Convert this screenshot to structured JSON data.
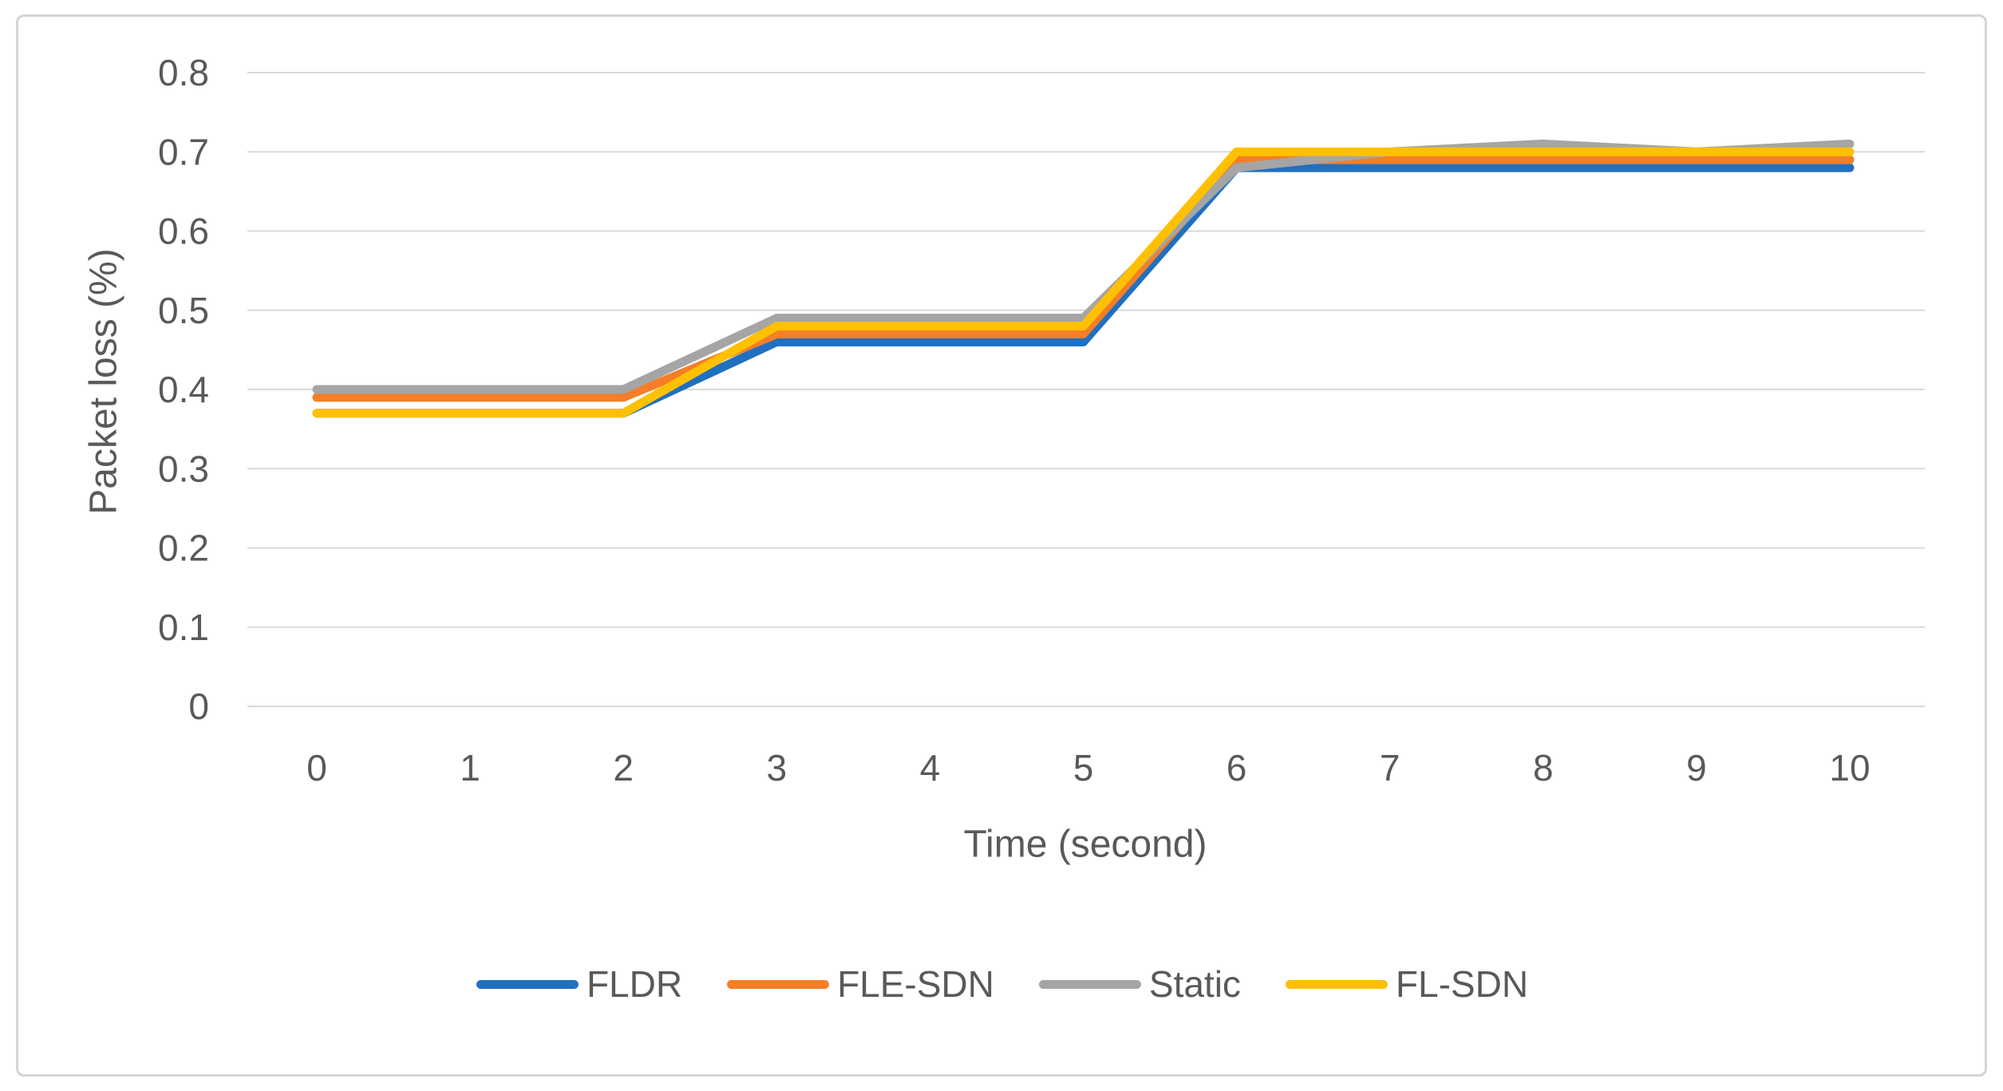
{
  "figure": {
    "background": "#ffffff",
    "border_color": "#d4d4d4"
  },
  "chart_data": {
    "type": "line",
    "title": "",
    "xlabel": "Time (second)",
    "ylabel": "Packet loss (%)",
    "x": [
      0,
      1,
      2,
      3,
      4,
      5,
      6,
      7,
      8,
      9,
      10
    ],
    "xtick_labels": [
      "0",
      "1",
      "2",
      "3",
      "4",
      "5",
      "6",
      "7",
      "8",
      "9",
      "10"
    ],
    "ylim": [
      0,
      0.8
    ],
    "ytick_step": 0.1,
    "ytick_labels": [
      "0",
      "0.1",
      "0.2",
      "0.3",
      "0.4",
      "0.5",
      "0.6",
      "0.7",
      "0.8"
    ],
    "grid": true,
    "gridline_color": "#d9d9d9",
    "axis_line_color": "#d9d9d9",
    "tick_label_color": "#595959",
    "legend_position": "bottom",
    "series": [
      {
        "name": "FLDR",
        "color": "#2070c0",
        "values": [
          0.37,
          0.37,
          0.37,
          0.46,
          0.46,
          0.46,
          0.68,
          0.68,
          0.68,
          0.68,
          0.68
        ]
      },
      {
        "name": "FLE-SDN",
        "color": "#f57e27",
        "values": [
          0.39,
          0.39,
          0.39,
          0.47,
          0.47,
          0.47,
          0.69,
          0.69,
          0.69,
          0.69,
          0.69
        ]
      },
      {
        "name": "Static",
        "color": "#a5a5a5",
        "values": [
          0.4,
          0.4,
          0.4,
          0.49,
          0.49,
          0.49,
          0.68,
          0.7,
          0.71,
          0.7,
          0.71
        ]
      },
      {
        "name": "FL-SDN",
        "color": "#ffc000",
        "values": [
          0.37,
          0.37,
          0.37,
          0.48,
          0.48,
          0.48,
          0.7,
          0.7,
          0.7,
          0.7,
          0.7
        ]
      }
    ]
  }
}
